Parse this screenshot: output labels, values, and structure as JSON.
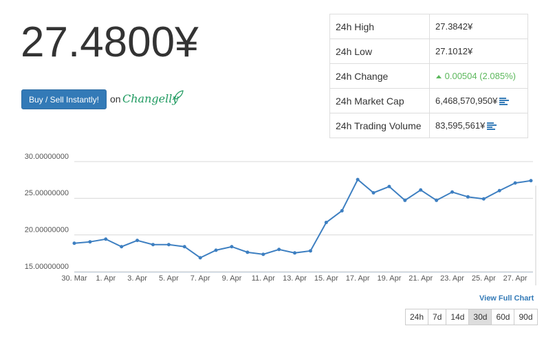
{
  "price": "27.4800¥",
  "buy_button": "Buy / Sell Instantly!",
  "on_text": "on",
  "partner": "Changelly",
  "stats": [
    {
      "label": "24h High",
      "value": "27.3842¥"
    },
    {
      "label": "24h Low",
      "value": "27.1012¥"
    },
    {
      "label": "24h Change",
      "value": "0.00504 (2.085%)"
    },
    {
      "label": "24h Market Cap",
      "value": "6,468,570,950¥"
    },
    {
      "label": "24h Trading Volume",
      "value": "83,595,561¥"
    }
  ],
  "chart_data": {
    "type": "line",
    "categories": [
      "30. Mar",
      null,
      "1. Apr",
      null,
      "3. Apr",
      null,
      "5. Apr",
      null,
      "7. Apr",
      null,
      "9. Apr",
      null,
      "11. Apr",
      null,
      "13. Apr",
      null,
      "15. Apr",
      null,
      "17. Apr",
      null,
      "19. Apr",
      null,
      "21. Apr",
      null,
      "23. Apr",
      null,
      "25. Apr",
      null,
      "27. Apr",
      null
    ],
    "values": [
      18.87,
      19.06,
      19.43,
      18.4,
      19.25,
      18.68,
      18.68,
      18.4,
      16.89,
      17.92,
      18.4,
      17.64,
      17.36,
      18.02,
      17.55,
      17.83,
      21.7,
      23.3,
      27.55,
      25.75,
      26.6,
      24.72,
      26.13,
      24.72,
      25.85,
      25.19,
      24.91,
      26.04,
      27.08,
      27.4
    ],
    "color": "#3d7fc1",
    "ylim": [
      15,
      30
    ],
    "yticks": [
      {
        "value": 15,
        "label": "15.00000000"
      },
      {
        "value": 20,
        "label": "20.00000000"
      },
      {
        "value": 25,
        "label": "25.00000000"
      },
      {
        "value": 30,
        "label": "30.00000000"
      }
    ],
    "grid": true
  },
  "view_full_chart": "View Full Chart",
  "ranges": [
    "24h",
    "7d",
    "14d",
    "30d",
    "60d",
    "90d"
  ],
  "active_range": "30d"
}
